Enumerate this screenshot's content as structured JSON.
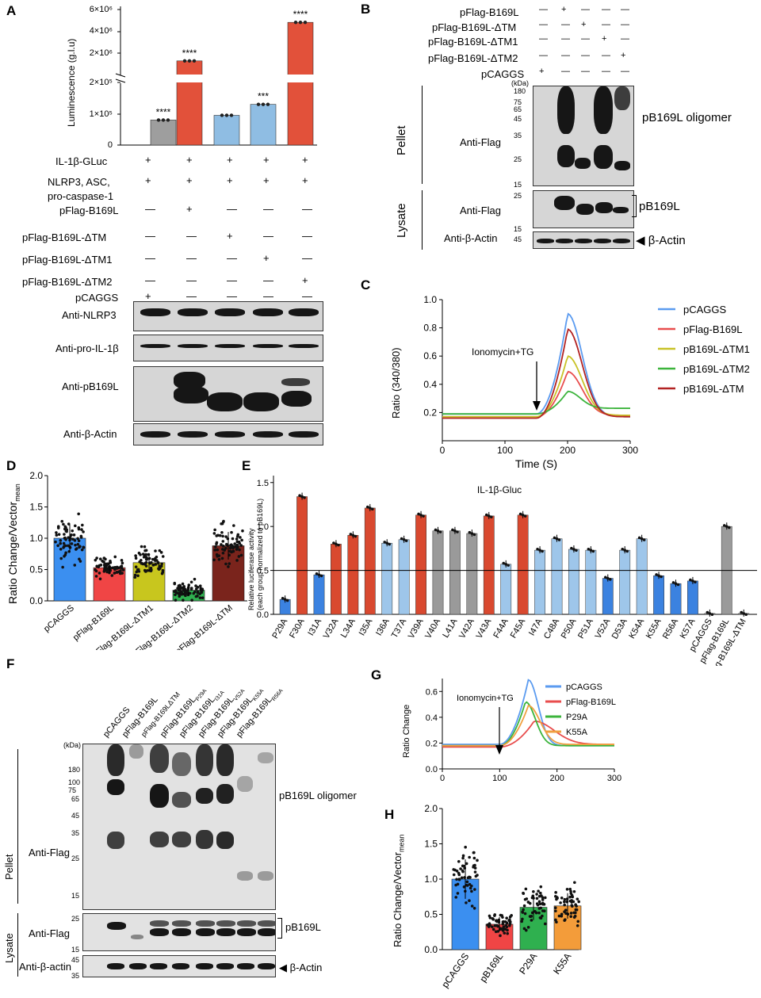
{
  "panels": [
    "A",
    "B",
    "C",
    "D",
    "E",
    "F",
    "G",
    "H"
  ],
  "panelA": {
    "ylabel": "Luminescence (g.l.u)",
    "yticks_low": [
      "0",
      "1×10⁵",
      "2×10⁵"
    ],
    "yticks_high": [
      "2×10⁶",
      "4×10⁶",
      "6×10⁶"
    ],
    "stars": [
      "****",
      "****",
      "",
      "***",
      "****"
    ],
    "bar_colors": [
      "#9e9e9e",
      "#e2513a",
      "#8fbde3",
      "#8fbde3",
      "#e2513a"
    ],
    "chart_data": {
      "type": "bar",
      "categories": [
        "pCAGGS",
        "pFlag-B169L",
        "pFlag-B169L-ΔTM",
        "pFlag-B169L-ΔTM1",
        "pFlag-B169L-ΔTM2"
      ],
      "values": [
        80000,
        2000000,
        95000,
        130000,
        5000000
      ]
    },
    "rows": [
      {
        "label": "IL-1β-GLuc",
        "marks": [
          "+",
          "+",
          "+",
          "+",
          "+"
        ]
      },
      {
        "label": "NLRP3, ASC,",
        "label2": "pro-caspase-1",
        "marks": [
          "+",
          "+",
          "+",
          "+",
          "+"
        ]
      },
      {
        "label": "pFlag-B169L",
        "marks": [
          "—",
          "+",
          "—",
          "—",
          "—"
        ]
      },
      {
        "label": "pFlag-B169L-ΔTM",
        "marks": [
          "—",
          "—",
          "+",
          "—",
          "—"
        ]
      },
      {
        "label": "pFlag-B169L-ΔTM1",
        "marks": [
          "—",
          "—",
          "—",
          "+",
          "—"
        ]
      },
      {
        "label": "pFlag-B169L-ΔTM2",
        "marks": [
          "—",
          "—",
          "—",
          "—",
          "+"
        ]
      },
      {
        "label": "pCAGGS",
        "marks": [
          "+",
          "—",
          "—",
          "—",
          "—"
        ]
      }
    ],
    "blots": [
      "Anti-NLRP3",
      "Anti-pro-IL-1β",
      "Anti-pB169L",
      "Anti-β-Actin"
    ]
  },
  "panelB": {
    "rows": [
      {
        "label": "pFlag-B169L",
        "marks": [
          "—",
          "+",
          "—",
          "—",
          "—"
        ]
      },
      {
        "label": "pFlag-B169L-ΔTM",
        "marks": [
          "—",
          "—",
          "+",
          "—",
          "—"
        ]
      },
      {
        "label": "pFlag-B169L-ΔTM1",
        "marks": [
          "—",
          "—",
          "—",
          "+",
          "—"
        ]
      },
      {
        "label": "pFlag-B169L-ΔTM2",
        "marks": [
          "—",
          "—",
          "—",
          "—",
          "+"
        ]
      },
      {
        "label": "pCAGGS",
        "marks": [
          "+",
          "—",
          "—",
          "—",
          "—"
        ]
      }
    ],
    "kda": "(kDa)",
    "mw_pellet": [
      "180",
      "75",
      "65",
      "45",
      "35",
      "25",
      "15"
    ],
    "mw_lysate": [
      "25",
      "15"
    ],
    "mw_actin": "45",
    "pellet": "Pellet",
    "lysate": "Lysate",
    "anti_flag": "Anti-Flag",
    "anti_actin": "Anti-β-Actin",
    "oligomer": "pB169L oligomer",
    "monomer": "pB169L",
    "actin": "β-Actin"
  },
  "panelC": {
    "xlabel": "Time   (S)",
    "ylabel": "Ratio (340/380)",
    "annotation": "Ionomycin+TG",
    "xticks": [
      "0",
      "100",
      "200",
      "300"
    ],
    "yticks": [
      "0.2",
      "0.4",
      "0.6",
      "0.8",
      "1.0"
    ],
    "chart_data": {
      "type": "line",
      "x_range": [
        0,
        300
      ],
      "y_range": [
        0.0,
        1.0
      ],
      "series": [
        {
          "name": "pCAGGS",
          "color": "#5b9bf0",
          "peak": 0.9
        },
        {
          "name": "pFlag-B169L",
          "color": "#e84d4d",
          "peak": 0.49
        },
        {
          "name": "pB169L-ΔTM1",
          "color": "#c8c227",
          "peak": 0.6
        },
        {
          "name": "pB169L-ΔTM2",
          "color": "#3cb43c",
          "peak": 0.35
        },
        {
          "name": "pB169L-ΔTM",
          "color": "#b22222",
          "peak": 0.79
        }
      ]
    }
  },
  "panelD": {
    "ylabel": "Ratio Change/Vector",
    "ysub": "mean",
    "yticks": [
      "0.0",
      "0.5",
      "1.0",
      "1.5",
      "2.0"
    ],
    "chart_data": {
      "type": "bar",
      "categories": [
        "pCAGGS",
        "pFlag-B169L",
        "pFlag-B169L-ΔTM1",
        "pFlag-B169L-ΔTM2",
        "pFlag-B169L-ΔTM"
      ],
      "values": [
        1.0,
        0.53,
        0.61,
        0.17,
        0.88
      ],
      "colors": [
        "#3b8ff0",
        "#f04545",
        "#c8c61e",
        "#2fb04f",
        "#7a241c"
      ]
    }
  },
  "panelE": {
    "title": "IL-1β-Gluc",
    "ylabel1": "Relative luciferase activity",
    "ylabel2": "(each group normalized to pB169L)",
    "yticks": [
      "0.0",
      "0.5",
      "1.0",
      "1.5"
    ],
    "chart_data": {
      "type": "bar",
      "categories": [
        "P29A",
        "F30A",
        "I31A",
        "V32A",
        "L34A",
        "I35A",
        "I36A",
        "T37A",
        "V39A",
        "V40A",
        "L41A",
        "V42A",
        "V43A",
        "F44A",
        "F45A",
        "I47A",
        "C48A",
        "P50A",
        "P51A",
        "V52A",
        "D53A",
        "K54A",
        "K55A",
        "R56A",
        "K57A",
        "pCAGGS",
        "pFlag-B169L",
        "pFlag-B169L-ΔTM"
      ],
      "values": [
        0.17,
        1.34,
        0.45,
        0.8,
        0.9,
        1.21,
        0.81,
        0.85,
        1.13,
        0.95,
        0.95,
        0.92,
        1.12,
        0.57,
        1.13,
        0.73,
        0.86,
        0.74,
        0.73,
        0.41,
        0.73,
        0.86,
        0.44,
        0.35,
        0.38,
        0.01,
        1.0,
        0.01
      ],
      "colors": [
        "#3b82e0",
        "#d9492f",
        "#3b82e0",
        "#d9492f",
        "#d9492f",
        "#d9492f",
        "#9ec6ea",
        "#9ec6ea",
        "#d9492f",
        "#9a9a9a",
        "#9a9a9a",
        "#9a9a9a",
        "#d9492f",
        "#9ec6ea",
        "#d9492f",
        "#9ec6ea",
        "#9ec6ea",
        "#9ec6ea",
        "#9ec6ea",
        "#3b82e0",
        "#9ec6ea",
        "#9ec6ea",
        "#3b82e0",
        "#3b82e0",
        "#3b82e0",
        "#9a9a9a",
        "#9a9a9a",
        "#9a9a9a"
      ],
      "threshold": 0.5
    }
  },
  "panelF": {
    "lanes": [
      "pCAGGS",
      "pFlag-B169L",
      "pFlag-B169LΔTM",
      "pFlag-B169L",
      "pFlag-B169L",
      "pFlag-B169L",
      "pFlag-B169L",
      "pFlag-B169L"
    ],
    "lane_subs": [
      "",
      "",
      "",
      "P29A",
      "I31A",
      "V52A",
      "K55A",
      "R56A"
    ],
    "lane_subs2": [
      "",
      "",
      "",
      "",
      "",
      "",
      "",
      "K57A"
    ],
    "kda": "(kDa)",
    "mw_pellet": [
      "180",
      "100",
      "75",
      "65",
      "45",
      "35",
      "25",
      "15"
    ],
    "mw_lysate": [
      "25",
      "15"
    ],
    "mw_actin": [
      "45",
      "35"
    ],
    "pellet": "Pellet",
    "lysate": "Lysate",
    "anti_flag": "Anti-Flag",
    "anti_actin": "Anti-β-actin",
    "oligomer": "pB169L oligomer",
    "monomer": "pB169L",
    "actin": "β-Actin"
  },
  "panelG": {
    "ylabel": "Ratio Change",
    "annotation": "Ionomycin+TG",
    "xticks": [
      "0",
      "100",
      "200",
      "300"
    ],
    "yticks": [
      "0.0",
      "0.2",
      "0.4",
      "0.6"
    ],
    "chart_data": {
      "type": "line",
      "x_range": [
        0,
        300
      ],
      "y_range": [
        0.0,
        0.7
      ],
      "series": [
        {
          "name": "pCAGGS",
          "color": "#5b9bf0",
          "peak": 0.69
        },
        {
          "name": "pFlag-B169L",
          "color": "#e84d4d",
          "peak": 0.37
        },
        {
          "name": "P29A",
          "color": "#3cb43c",
          "peak": 0.52
        },
        {
          "name": "K55A",
          "color": "#f0a040",
          "peak": 0.49
        }
      ]
    }
  },
  "panelH": {
    "ylabel": "Ratio Change/Vector",
    "ysub": "mean",
    "yticks": [
      "0.0",
      "0.5",
      "1.0",
      "1.5",
      "2.0"
    ],
    "chart_data": {
      "type": "bar",
      "categories": [
        "pCAGGS",
        "pB169L",
        "P29A",
        "K55A"
      ],
      "values": [
        1.0,
        0.36,
        0.6,
        0.62
      ],
      "colors": [
        "#3b8ff0",
        "#f04545",
        "#2fb04f",
        "#f39c3a"
      ]
    }
  }
}
